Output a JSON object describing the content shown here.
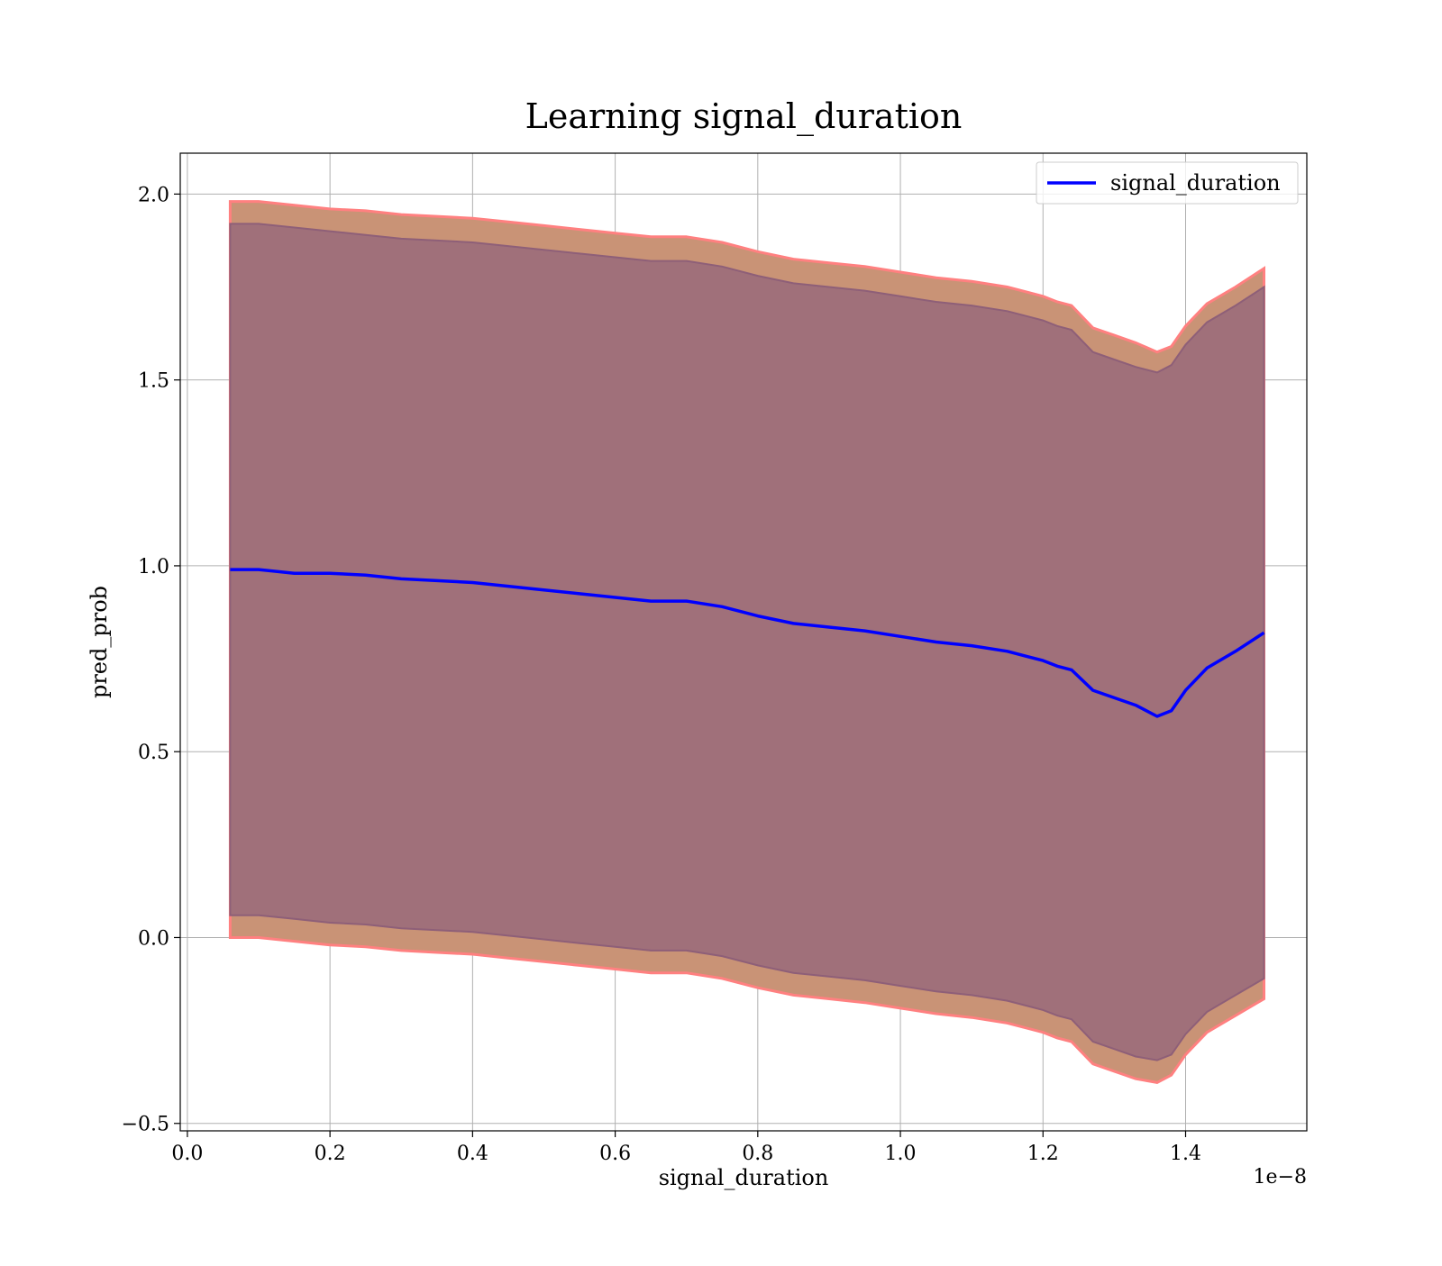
{
  "chart_data": {
    "type": "line",
    "title": "Learning signal_duration",
    "xlabel": "signal_duration",
    "ylabel": "pred_prob",
    "x_offset_label": "1e−8",
    "xlim": [
      -0.01,
      1.57
    ],
    "ylim": [
      -0.52,
      2.11
    ],
    "x_ticks": [
      0.0,
      0.2,
      0.4,
      0.6,
      0.8,
      1.0,
      1.2,
      1.4
    ],
    "x_tick_labels": [
      "0.0",
      "0.2",
      "0.4",
      "0.6",
      "0.8",
      "1.0",
      "1.2",
      "1.4"
    ],
    "y_ticks": [
      -0.5,
      0.0,
      0.5,
      1.0,
      1.5,
      2.0
    ],
    "y_tick_labels": [
      "−0.5",
      "0.0",
      "0.5",
      "1.0",
      "1.5",
      "2.0"
    ],
    "grid": true,
    "legend_position": "top-right",
    "colors": {
      "line": "#0000ff",
      "band_outer_edge": "#ff8080",
      "band_outer": "#c99376",
      "band_inner": "#a0707a",
      "band_inner_edge": "#8e5f78",
      "grid": "#b0b0b0"
    },
    "series": [
      {
        "name": "signal_duration",
        "x": [
          0.06,
          0.1,
          0.15,
          0.2,
          0.25,
          0.3,
          0.35,
          0.4,
          0.45,
          0.5,
          0.55,
          0.6,
          0.65,
          0.7,
          0.75,
          0.8,
          0.85,
          0.9,
          0.95,
          1.0,
          1.05,
          1.1,
          1.15,
          1.2,
          1.22,
          1.24,
          1.27,
          1.3,
          1.33,
          1.36,
          1.38,
          1.4,
          1.43,
          1.47,
          1.51
        ],
        "y": [
          0.99,
          0.99,
          0.98,
          0.98,
          0.975,
          0.965,
          0.96,
          0.955,
          0.945,
          0.935,
          0.925,
          0.915,
          0.905,
          0.905,
          0.89,
          0.865,
          0.845,
          0.835,
          0.825,
          0.81,
          0.795,
          0.785,
          0.77,
          0.745,
          0.73,
          0.72,
          0.665,
          0.645,
          0.625,
          0.595,
          0.61,
          0.665,
          0.725,
          0.77,
          0.82
        ]
      }
    ],
    "bands": [
      {
        "role": "outer",
        "upper": [
          1.98,
          1.98,
          1.97,
          1.96,
          1.955,
          1.945,
          1.94,
          1.935,
          1.925,
          1.915,
          1.905,
          1.895,
          1.885,
          1.885,
          1.87,
          1.845,
          1.825,
          1.815,
          1.805,
          1.79,
          1.775,
          1.765,
          1.75,
          1.725,
          1.71,
          1.7,
          1.64,
          1.62,
          1.6,
          1.575,
          1.59,
          1.645,
          1.705,
          1.75,
          1.8
        ],
        "lower": [
          0.0,
          0.0,
          -0.01,
          -0.02,
          -0.025,
          -0.035,
          -0.04,
          -0.045,
          -0.055,
          -0.065,
          -0.075,
          -0.085,
          -0.095,
          -0.095,
          -0.11,
          -0.135,
          -0.155,
          -0.165,
          -0.175,
          -0.19,
          -0.205,
          -0.215,
          -0.23,
          -0.255,
          -0.27,
          -0.28,
          -0.34,
          -0.36,
          -0.38,
          -0.39,
          -0.37,
          -0.315,
          -0.255,
          -0.21,
          -0.165
        ]
      },
      {
        "role": "inner",
        "upper": [
          1.92,
          1.92,
          1.91,
          1.9,
          1.89,
          1.88,
          1.875,
          1.87,
          1.86,
          1.85,
          1.84,
          1.83,
          1.82,
          1.82,
          1.805,
          1.78,
          1.76,
          1.75,
          1.74,
          1.725,
          1.71,
          1.7,
          1.685,
          1.66,
          1.645,
          1.635,
          1.575,
          1.555,
          1.535,
          1.52,
          1.54,
          1.595,
          1.655,
          1.7,
          1.75
        ],
        "lower": [
          0.06,
          0.06,
          0.05,
          0.04,
          0.035,
          0.025,
          0.02,
          0.015,
          0.005,
          -0.005,
          -0.015,
          -0.025,
          -0.035,
          -0.035,
          -0.05,
          -0.075,
          -0.095,
          -0.105,
          -0.115,
          -0.13,
          -0.145,
          -0.155,
          -0.17,
          -0.195,
          -0.21,
          -0.22,
          -0.28,
          -0.3,
          -0.32,
          -0.33,
          -0.315,
          -0.26,
          -0.2,
          -0.155,
          -0.11
        ]
      }
    ]
  }
}
